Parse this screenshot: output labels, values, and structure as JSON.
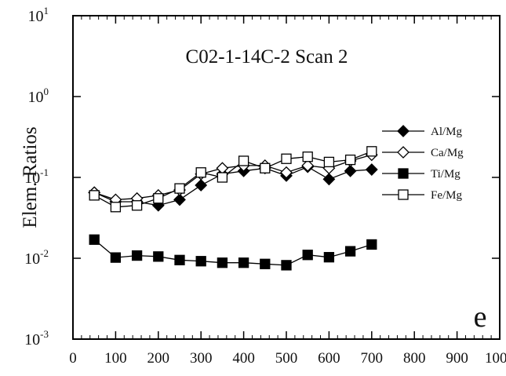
{
  "chart_data": {
    "type": "line",
    "title": "C02-1-14C-2  Scan 2",
    "xlabel": "",
    "ylabel": "Elem. Ratios",
    "annotation": "e",
    "y_scale": "log",
    "xlim": [
      0,
      1000
    ],
    "ylim": [
      0.001,
      10
    ],
    "x_ticks": [
      "0",
      "100",
      "200",
      "300",
      "400",
      "500",
      "600",
      "700",
      "800",
      "900",
      "1000"
    ],
    "y_ticks": [
      {
        "base": "10",
        "exp": "1"
      },
      {
        "base": "10",
        "exp": "0"
      },
      {
        "base": "10",
        "exp": "-1"
      },
      {
        "base": "10",
        "exp": "-2"
      },
      {
        "base": "10",
        "exp": "-3"
      }
    ],
    "legend_position": "right",
    "x": [
      50,
      100,
      150,
      200,
      250,
      300,
      350,
      400,
      450,
      500,
      550,
      600,
      650,
      700
    ],
    "series": [
      {
        "name": "Al/Mg",
        "marker": "diamond-filled",
        "values": [
          0.065,
          0.05,
          0.05,
          0.045,
          0.053,
          0.08,
          0.11,
          0.12,
          0.13,
          0.105,
          0.135,
          0.095,
          0.12,
          0.125
        ]
      },
      {
        "name": "Ca/Mg",
        "marker": "diamond-open",
        "values": [
          0.065,
          0.053,
          0.055,
          0.06,
          0.07,
          0.11,
          0.13,
          0.14,
          0.14,
          0.115,
          0.14,
          0.13,
          0.16,
          0.19
        ]
      },
      {
        "name": "Ti/Mg",
        "marker": "square-filled",
        "values": [
          0.017,
          0.0102,
          0.0108,
          0.0105,
          0.0095,
          0.0092,
          0.0088,
          0.0088,
          0.0085,
          0.0082,
          0.011,
          0.0103,
          0.0122,
          0.0148
        ]
      },
      {
        "name": "Fe/Mg",
        "marker": "square-open",
        "values": [
          0.06,
          0.043,
          0.045,
          0.055,
          0.073,
          0.115,
          0.1,
          0.16,
          0.13,
          0.17,
          0.18,
          0.155,
          0.165,
          0.21
        ]
      }
    ]
  }
}
